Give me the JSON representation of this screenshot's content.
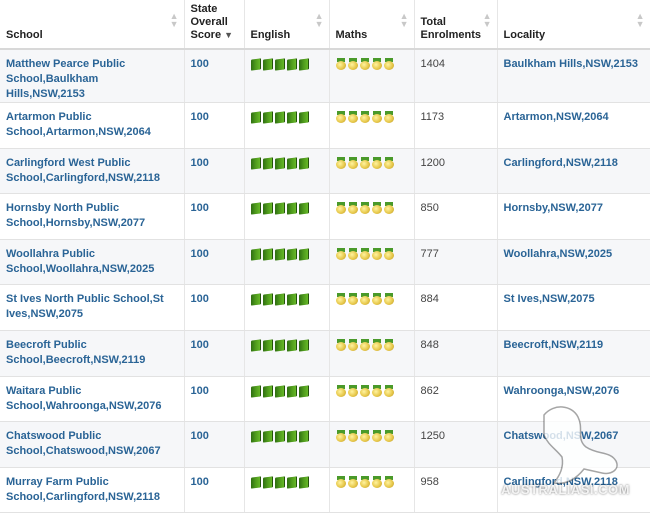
{
  "columns": [
    {
      "key": "school",
      "label": "School"
    },
    {
      "key": "score",
      "label": "State Overall Score"
    },
    {
      "key": "english",
      "label": "English"
    },
    {
      "key": "maths",
      "label": "Maths"
    },
    {
      "key": "enrolments",
      "label": "Total Enrolments"
    },
    {
      "key": "locality",
      "label": "Locality"
    }
  ],
  "rows": [
    {
      "school": "Matthew Pearce Public School,Baulkham Hills,NSW,2153",
      "score": "100",
      "enrolments": "1404",
      "locality": "Baulkham Hills,NSW,2153"
    },
    {
      "school": "Artarmon Public School,Artarmon,NSW,2064",
      "score": "100",
      "enrolments": "1173",
      "locality": "Artarmon,NSW,2064"
    },
    {
      "school": "Carlingford West Public School,Carlingford,NSW,2118",
      "score": "100",
      "enrolments": "1200",
      "locality": "Carlingford,NSW,2118"
    },
    {
      "school": "Hornsby North Public School,Hornsby,NSW,2077",
      "score": "100",
      "enrolments": "850",
      "locality": "Hornsby,NSW,2077"
    },
    {
      "school": "Woollahra Public School,Woollahra,NSW,2025",
      "score": "100",
      "enrolments": "777",
      "locality": "Woollahra,NSW,2025"
    },
    {
      "school": "St Ives North Public School,St Ives,NSW,2075",
      "score": "100",
      "enrolments": "884",
      "locality": "St Ives,NSW,2075"
    },
    {
      "school": "Beecroft Public School,Beecroft,NSW,2119",
      "score": "100",
      "enrolments": "848",
      "locality": "Beecroft,NSW,2119"
    },
    {
      "school": "Waitara Public School,Wahroonga,NSW,2076",
      "score": "100",
      "enrolments": "862",
      "locality": "Wahroonga,NSW,2076"
    },
    {
      "school": "Chatswood Public School,Chatswood,NSW,2067",
      "score": "100",
      "enrolments": "1250",
      "locality": "Chatswood,NSW,2067"
    },
    {
      "school": "Murray Farm Public School,Carlingford,NSW,2118",
      "score": "100",
      "enrolments": "958",
      "locality": "Carlingford,NSW,2118"
    }
  ],
  "rating_icons": {
    "english": "book-icon",
    "maths": "medal-icon",
    "english_count": 5,
    "maths_count": 5
  },
  "watermark": {
    "text": "AUSTRALIASI.COM",
    "icon": "kangaroo-icon"
  }
}
